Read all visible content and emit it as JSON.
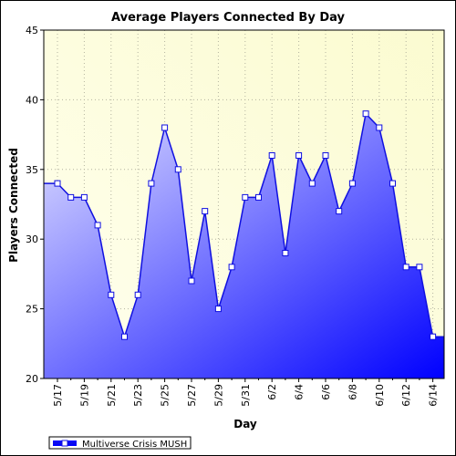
{
  "chart_data": {
    "type": "area",
    "title": "Average Players Connected By Day",
    "xlabel": "Day",
    "ylabel": "Players Connected",
    "ylim": [
      20,
      45
    ],
    "yticks": [
      20,
      25,
      30,
      35,
      40,
      45
    ],
    "grid": true,
    "legend_position": "bottom-left",
    "x": [
      "5/17",
      "5/18",
      "5/19",
      "5/20",
      "5/21",
      "5/22",
      "5/23",
      "5/24",
      "5/25",
      "5/26",
      "5/27",
      "5/28",
      "5/29",
      "5/30",
      "5/31",
      "6/1",
      "6/2",
      "6/3",
      "6/4",
      "6/5",
      "6/6",
      "6/7",
      "6/8",
      "6/9",
      "6/10",
      "6/11",
      "6/12",
      "6/13",
      "6/14"
    ],
    "xtick_labels": [
      "5/17",
      "5/19",
      "5/21",
      "5/23",
      "5/25",
      "5/27",
      "5/29",
      "5/31",
      "6/2",
      "6/4",
      "6/6",
      "6/8",
      "6/10",
      "6/12",
      "6/14"
    ],
    "series": [
      {
        "name": "Multiverse Crisis MUSH",
        "values": [
          34,
          33,
          33,
          31,
          26,
          23,
          26,
          34,
          38,
          35,
          27,
          32,
          25,
          28,
          33,
          33,
          36,
          29,
          36,
          34,
          36,
          32,
          34,
          39,
          38,
          34,
          28,
          28,
          23
        ]
      }
    ]
  },
  "colors": {
    "plot_bg_light": "#ffffee",
    "plot_bg_yellow": "#fbfbd0",
    "line": "#1010e0",
    "fill_light": "#e2e2ff",
    "fill_dark": "#0000ff",
    "grid": "#b4b4a0"
  }
}
